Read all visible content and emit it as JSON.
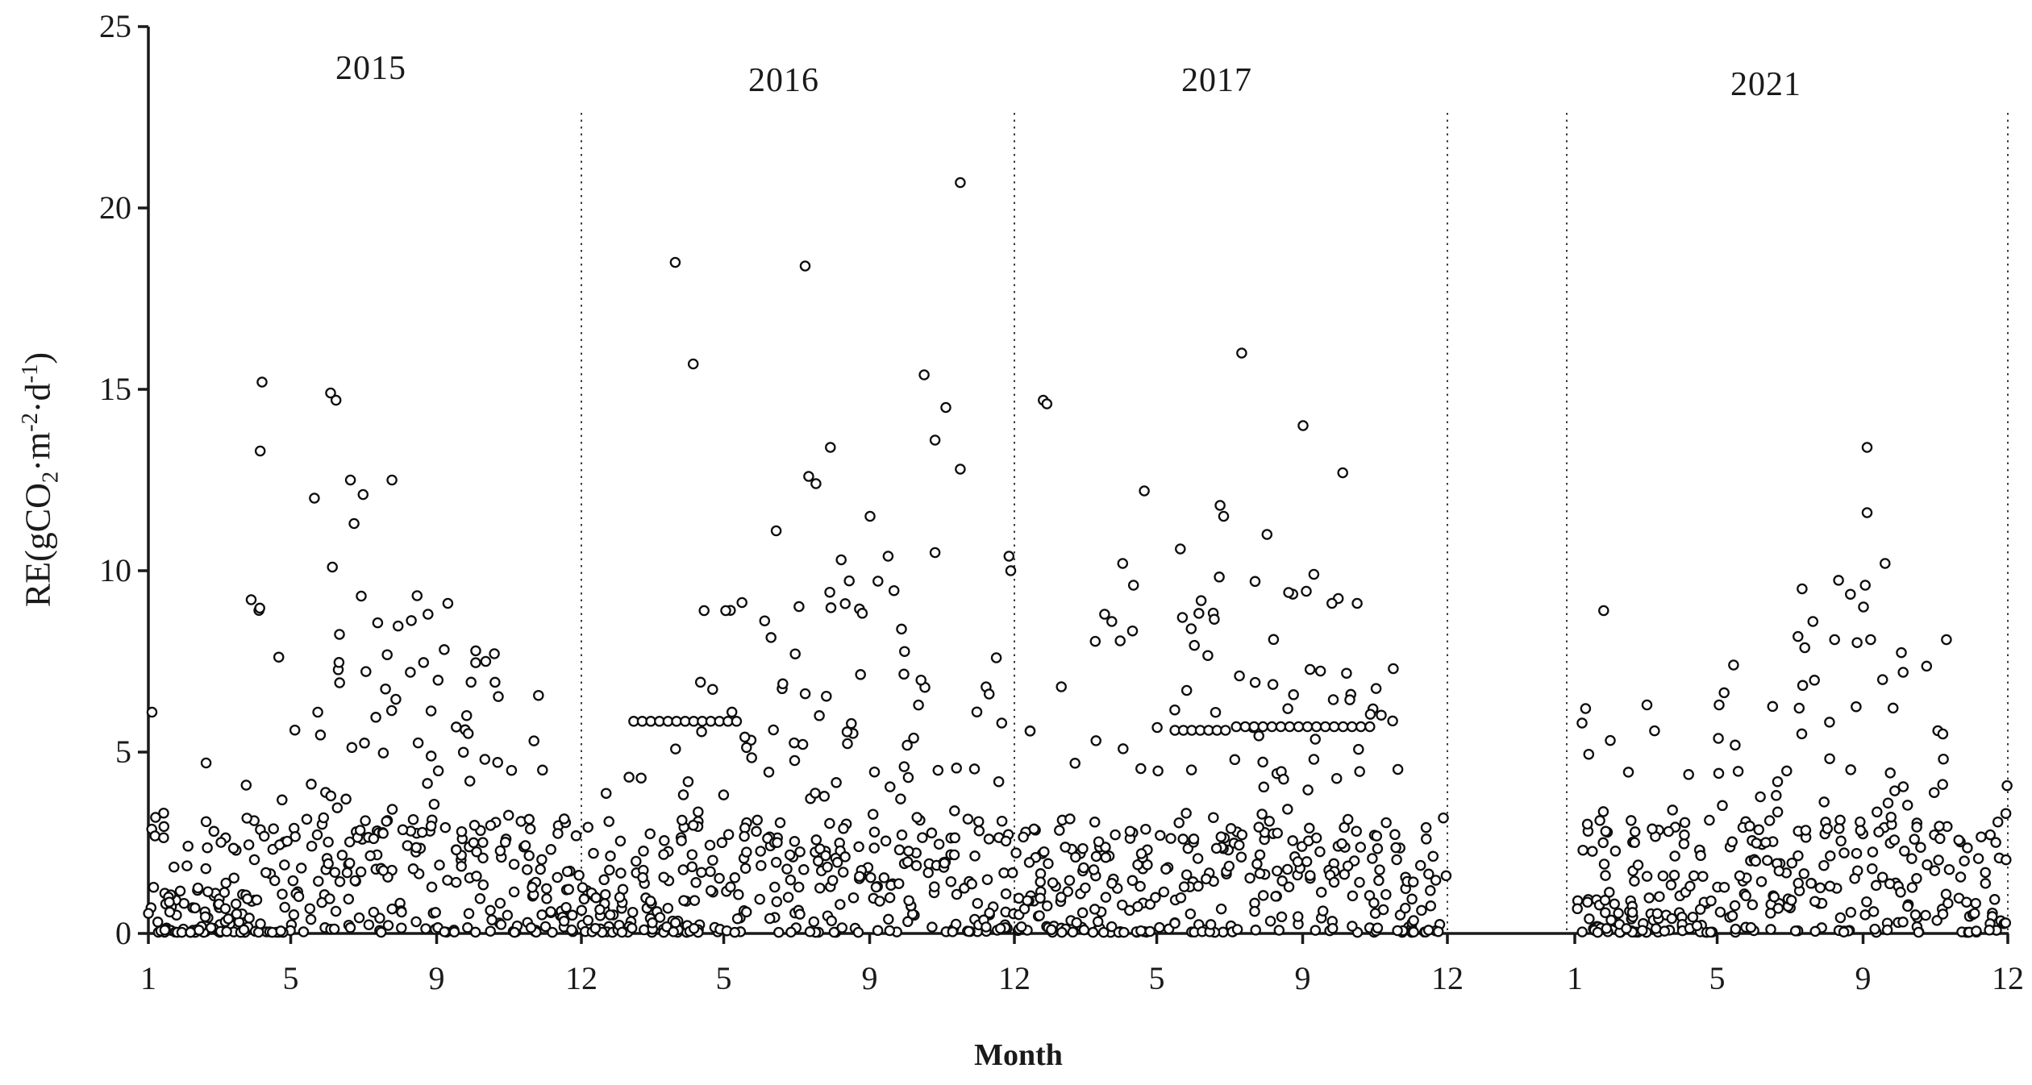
{
  "figure": {
    "x_title": "Month",
    "y_label": {
      "p1": "RE(gCO",
      "sub1": "2",
      "p2": "·m",
      "sup1": "-2",
      "p3": "·d",
      "sup2": "-1",
      "p4": ")"
    }
  },
  "chart_data": {
    "type": "scatter",
    "title": "",
    "xlabel": "Month",
    "ylabel": "RE(gCO2·m-2·d-1)",
    "ylim": [
      0,
      25
    ],
    "y_ticks": [
      0,
      5,
      10,
      15,
      20,
      25
    ],
    "grid": false,
    "legend": "none",
    "marker": "open-circle",
    "note_visible_structure": "four year panels separated by dotted vertical lines; empty gap between 2017 and 2021 panels",
    "colors": {
      "ink": "#1a1a1a",
      "background": "#ffffff"
    },
    "point_style": {
      "radius": 5.6,
      "stroke": "#0d0d0d",
      "stroke_width": 2.3,
      "fill": "#ffffff"
    },
    "render_seed": 12345,
    "panels": [
      {
        "year": "2015",
        "x_tick_labels": [
          "1",
          "5",
          "9",
          "12"
        ],
        "tick_months": [
          1,
          5,
          9,
          13
        ],
        "outliers": [
          [
            4.15,
            15.2
          ],
          [
            6.05,
            14.9
          ],
          [
            6.2,
            14.7
          ],
          [
            4.1,
            13.3
          ],
          [
            6.6,
            12.5
          ],
          [
            7.75,
            12.5
          ],
          [
            5.6,
            12.0
          ],
          [
            6.95,
            12.1
          ],
          [
            6.7,
            11.3
          ],
          [
            6.1,
            10.1
          ],
          [
            3.85,
            9.2
          ],
          [
            6.9,
            9.3
          ],
          [
            8.75,
            8.8
          ],
          [
            9.3,
            9.1
          ],
          [
            10.35,
            7.5
          ],
          [
            1.1,
            6.1
          ],
          [
            1.2,
            3.2
          ],
          [
            2.6,
            4.7
          ]
        ],
        "cloud_months": [
          [
            26,
            6,
            1,
            6.2
          ],
          [
            28,
            7,
            0,
            3.4
          ],
          [
            24,
            9,
            2,
            5.2
          ],
          [
            14,
            11,
            4,
            9.4
          ],
          [
            10,
            13,
            6,
            9.0
          ],
          [
            8,
            15,
            9,
            9.6
          ],
          [
            8,
            16,
            10,
            9.2
          ],
          [
            8,
            15,
            9,
            9.4
          ],
          [
            7,
            13,
            10,
            9.2
          ],
          [
            9,
            14,
            8,
            8.2
          ],
          [
            13,
            13,
            4,
            6.6
          ],
          [
            18,
            9,
            1,
            3.2
          ]
        ]
      },
      {
        "year": "2016",
        "x_tick_labels": [
          "5",
          "9",
          "12"
        ],
        "tick_months": [
          5,
          9,
          13
        ],
        "outliers": [
          [
            11.5,
            20.7
          ],
          [
            3.6,
            18.5
          ],
          [
            7.2,
            18.4
          ],
          [
            4.1,
            15.7
          ],
          [
            10.5,
            15.4
          ],
          [
            11.1,
            14.5
          ],
          [
            10.8,
            13.6
          ],
          [
            11.5,
            12.8
          ],
          [
            7.9,
            13.4
          ],
          [
            7.3,
            12.6
          ],
          [
            7.5,
            12.4
          ],
          [
            9.0,
            11.5
          ],
          [
            6.4,
            11.1
          ],
          [
            10.8,
            10.5
          ],
          [
            12.85,
            10.4
          ],
          [
            12.9,
            10.0
          ],
          [
            8.2,
            10.3
          ],
          [
            9.5,
            10.4
          ],
          [
            5.0,
            8.9
          ],
          [
            4.4,
            8.9
          ],
          [
            12.5,
            7.6
          ],
          [
            12.3,
            6.6
          ],
          [
            12.65,
            5.8
          ]
        ],
        "cloud_months": [
          [
            24,
            7,
            1,
            4.2
          ],
          [
            22,
            9,
            2,
            6.0
          ],
          [
            18,
            10,
            3,
            7.8
          ],
          [
            12,
            12,
            5,
            8.8
          ],
          [
            10,
            13,
            7,
            9.2
          ],
          [
            8,
            14,
            9,
            9.8
          ],
          [
            8,
            15,
            10,
            9.6
          ],
          [
            7,
            14,
            10,
            10.2
          ],
          [
            7,
            13,
            10,
            10.0
          ],
          [
            8,
            12,
            8,
            9.0
          ],
          [
            12,
            12,
            5,
            7.0
          ],
          [
            16,
            10,
            2,
            7.4
          ]
        ]
      },
      {
        "year": "2017",
        "x_tick_labels": [
          "5",
          "9",
          "12"
        ],
        "tick_months": [
          5,
          9,
          13
        ],
        "outliers": [
          [
            1.8,
            14.7
          ],
          [
            1.9,
            14.6
          ],
          [
            7.3,
            16.0
          ],
          [
            9.0,
            14.0
          ],
          [
            10.1,
            12.7
          ],
          [
            4.6,
            12.2
          ],
          [
            6.7,
            11.8
          ],
          [
            6.8,
            11.5
          ],
          [
            8.0,
            11.0
          ],
          [
            5.6,
            10.6
          ],
          [
            4.0,
            10.2
          ],
          [
            9.3,
            9.9
          ],
          [
            8.6,
            9.4
          ],
          [
            9.8,
            9.1
          ],
          [
            10.5,
            9.1
          ],
          [
            4.3,
            9.6
          ],
          [
            3.5,
            8.8
          ],
          [
            3.7,
            8.6
          ],
          [
            11.5,
            7.3
          ],
          [
            2.3,
            6.8
          ],
          [
            5.9,
            8.4
          ]
        ],
        "cloud_months": [
          [
            18,
            12,
            2,
            6.4
          ],
          [
            16,
            13,
            2,
            6.8
          ],
          [
            14,
            12,
            3,
            8.6
          ],
          [
            12,
            12,
            5,
            9.8
          ],
          [
            10,
            13,
            6,
            9.0
          ],
          [
            8,
            14,
            8,
            10.0
          ],
          [
            8,
            14,
            9,
            10.4
          ],
          [
            7,
            13,
            9,
            10.8
          ],
          [
            7,
            13,
            9,
            10.2
          ],
          [
            8,
            12,
            7,
            9.0
          ],
          [
            12,
            11,
            4,
            7.0
          ],
          [
            16,
            8,
            1,
            3.4
          ]
        ]
      },
      {
        "year": "2021",
        "x_tick_labels": [
          "1",
          "5",
          "9",
          "12"
        ],
        "tick_months": [
          1,
          5,
          9,
          13
        ],
        "outliers": [
          [
            9.1,
            13.4
          ],
          [
            9.1,
            11.6
          ],
          [
            1.8,
            8.9
          ],
          [
            9.0,
            9.0
          ],
          [
            9.05,
            9.6
          ],
          [
            7.3,
            9.5
          ],
          [
            9.6,
            10.2
          ],
          [
            8.2,
            8.1
          ],
          [
            9.2,
            8.1
          ],
          [
            11.3,
            8.1
          ],
          [
            5.4,
            7.4
          ],
          [
            7.6,
            8.6
          ],
          [
            5.0,
            6.3
          ],
          [
            3.0,
            6.3
          ],
          [
            1.2,
            5.8
          ],
          [
            1.3,
            6.2
          ],
          [
            10.1,
            7.2
          ],
          [
            11.2,
            5.5
          ]
        ],
        "cloud_months": [
          [
            20,
            10,
            3,
            6.3
          ],
          [
            22,
            8,
            1,
            4.6
          ],
          [
            18,
            10,
            2,
            6.0
          ],
          [
            14,
            11,
            3,
            6.4
          ],
          [
            12,
            12,
            4,
            7.6
          ],
          [
            10,
            13,
            6,
            8.6
          ],
          [
            9,
            13,
            7,
            9.0
          ],
          [
            8,
            13,
            7,
            9.8
          ],
          [
            8,
            12,
            7,
            8.6
          ],
          [
            10,
            11,
            5,
            8.0
          ],
          [
            12,
            10,
            3,
            5.6
          ],
          [
            14,
            9,
            2,
            4.6
          ]
        ]
      }
    ],
    "runs": [
      {
        "panel": 1,
        "value": 5.85,
        "m_start": 2.45,
        "m_end": 5.3,
        "count": 13
      },
      {
        "panel": 2,
        "value": 5.6,
        "m_start": 5.45,
        "m_end": 6.85,
        "count": 7
      },
      {
        "panel": 2,
        "value": 5.7,
        "m_start": 7.15,
        "m_end": 10.85,
        "count": 16
      }
    ]
  }
}
